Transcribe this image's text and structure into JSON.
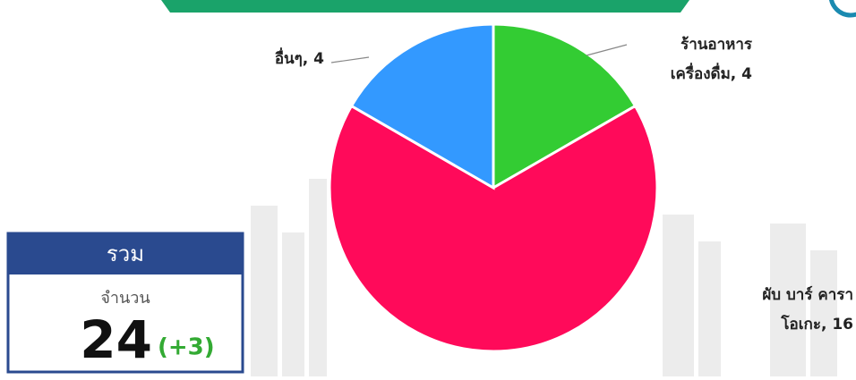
{
  "chart_data": {
    "type": "pie",
    "values": [
      4,
      16,
      4
    ],
    "value_labels": [
      [
        "ร้านอาหาร",
        "เครื่องดื่ม, 4"
      ],
      [
        "ผับ บาร์ คารา",
        "โอเกะ, 16"
      ],
      [
        "อื่นๆ, 4"
      ]
    ],
    "colors": [
      "#33cc33",
      "#ff0a5a",
      "#3399ff"
    ]
  },
  "summary": {
    "title": "รวม",
    "label": "จำนวน",
    "total": "24",
    "change": "(+3)"
  }
}
